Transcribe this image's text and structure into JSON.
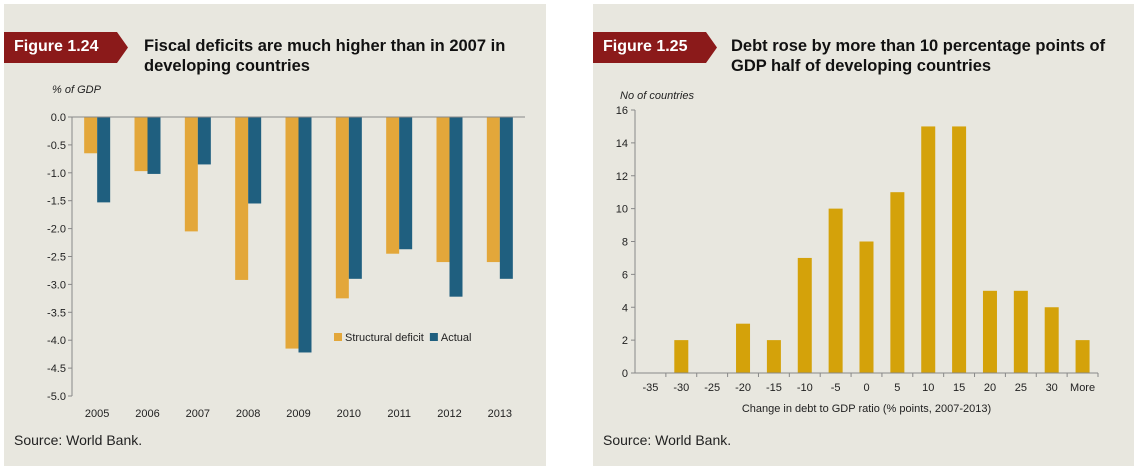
{
  "figures": [
    {
      "tag": "Figure 1.24",
      "title": "Fiscal deficits are much higher than in 2007 in developing countries",
      "source": "Source: World Bank."
    },
    {
      "tag": "Figure 1.25",
      "title": "Debt rose by more than 10 percentage points of GDP half of developing countries",
      "source": "Source: World Bank."
    }
  ],
  "colors": {
    "panel_bg": "#e8e7df",
    "tag_red": "#8b1a1a",
    "structural": "#e3a73a",
    "actual": "#1f5f7f",
    "bar_gold": "#d4a20a"
  },
  "chart_data": [
    {
      "type": "bar",
      "title": "Fiscal deficits are much higher than in 2007 in developing countries",
      "ylabel": "% of GDP",
      "xlabel": "",
      "categories": [
        "2005",
        "2006",
        "2007",
        "2008",
        "2009",
        "2010",
        "2011",
        "2012",
        "2013"
      ],
      "series": [
        {
          "name": "Structural deficit",
          "values": [
            -0.65,
            -0.97,
            -2.05,
            -2.92,
            -4.15,
            -3.25,
            -2.45,
            -2.6,
            -2.6
          ]
        },
        {
          "name": "Actual",
          "values": [
            -1.53,
            -1.02,
            -0.85,
            -1.55,
            -4.22,
            -2.9,
            -2.37,
            -3.22,
            -2.9
          ]
        }
      ],
      "ylim": [
        -5.0,
        0.0
      ],
      "yticks": [
        "0.0",
        "-0.5",
        "-1.0",
        "-1.5",
        "-2.0",
        "-2.5",
        "-3.0",
        "-3.5",
        "-4.0",
        "-4.5",
        "-5.0"
      ],
      "legend": "bottom-right",
      "grid": false
    },
    {
      "type": "bar",
      "title": "Debt rose by more than 10 percentage points of GDP half of developing countries",
      "ylabel": "No of countries",
      "xlabel": "Change in debt to GDP ratio (% points, 2007-2013)",
      "categories": [
        "-35",
        "-30",
        "-25",
        "-20",
        "-15",
        "-10",
        "-5",
        "0",
        "5",
        "10",
        "15",
        "20",
        "25",
        "30",
        "More"
      ],
      "values": [
        0,
        2,
        0,
        3,
        2,
        7,
        10,
        8,
        11,
        15,
        15,
        5,
        5,
        4,
        2
      ],
      "ylim": [
        0,
        16
      ],
      "yticks": [
        "0",
        "2",
        "4",
        "6",
        "8",
        "10",
        "12",
        "14",
        "16"
      ],
      "legend": "none",
      "grid": false
    }
  ]
}
